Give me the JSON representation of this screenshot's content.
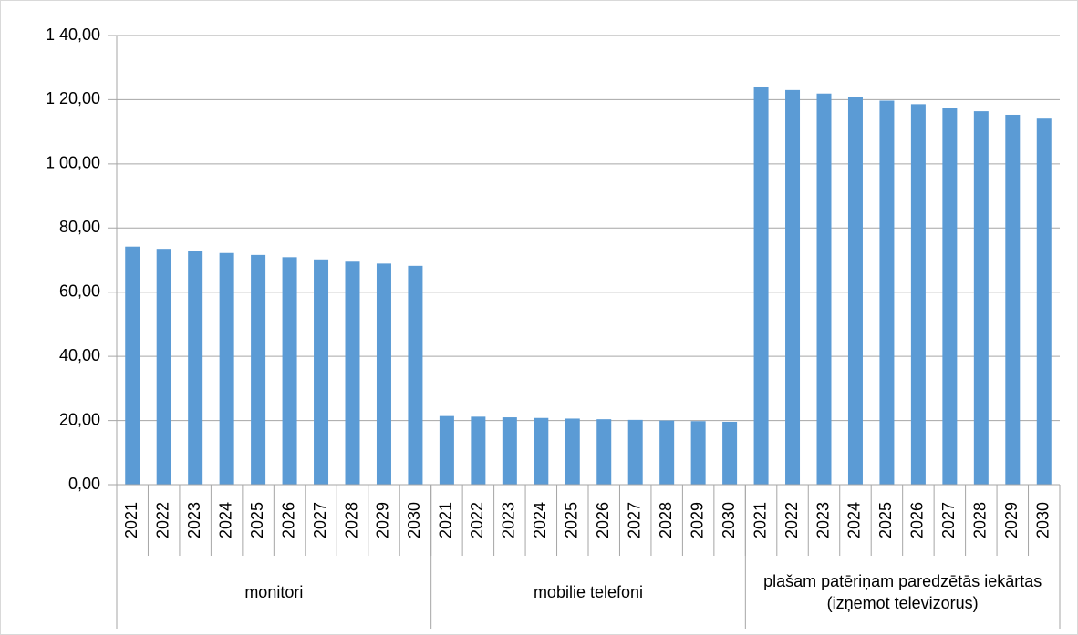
{
  "chart_data": {
    "type": "bar",
    "color": "#5b9bd5",
    "grid": true,
    "ylim": [
      0,
      140
    ],
    "yticks": [
      {
        "value": 0,
        "label": "0,00"
      },
      {
        "value": 20,
        "label": "20,00"
      },
      {
        "value": 40,
        "label": "40,00"
      },
      {
        "value": 60,
        "label": "60,00"
      },
      {
        "value": 80,
        "label": "80,00"
      },
      {
        "value": 100,
        "label": "1 00,00"
      },
      {
        "value": 120,
        "label": "1 20,00"
      },
      {
        "value": 140,
        "label": "1 40,00"
      }
    ],
    "groups": [
      {
        "name": "monitori",
        "categories": [
          "2021",
          "2022",
          "2023",
          "2024",
          "2025",
          "2026",
          "2027",
          "2028",
          "2029",
          "2030"
        ],
        "values": [
          74.2,
          73.5,
          72.9,
          72.2,
          71.6,
          70.9,
          70.2,
          69.5,
          68.9,
          68.2
        ]
      },
      {
        "name": "mobilie telefoni",
        "categories": [
          "2021",
          "2022",
          "2023",
          "2024",
          "2025",
          "2026",
          "2027",
          "2028",
          "2029",
          "2030"
        ],
        "values": [
          21.4,
          21.2,
          21.0,
          20.8,
          20.6,
          20.4,
          20.2,
          20.0,
          19.8,
          19.6
        ]
      },
      {
        "name": "plašam patēriņam paredzētās iekārtas (izņemot televizorus)",
        "categories": [
          "2021",
          "2022",
          "2023",
          "2024",
          "2025",
          "2026",
          "2027",
          "2028",
          "2029",
          "2030"
        ],
        "values": [
          124.1,
          123.0,
          121.9,
          120.8,
          119.7,
          118.6,
          117.5,
          116.4,
          115.3,
          114.1
        ]
      }
    ]
  }
}
